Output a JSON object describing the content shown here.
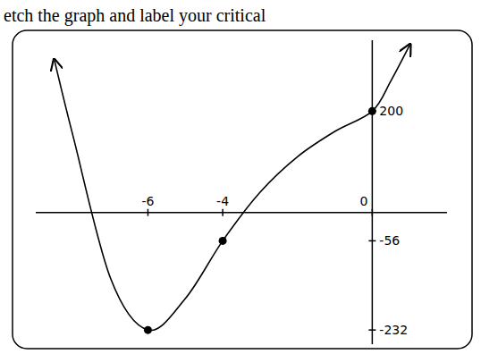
{
  "chart_data": {
    "type": "line",
    "title": "etch the graph and label your critical",
    "xlim": [
      -9,
      2
    ],
    "ylim": [
      -260,
      340
    ],
    "xticks": [
      -6,
      -4,
      0
    ],
    "yticks": [
      200,
      -56,
      -232
    ],
    "grid": false,
    "series": [
      {
        "type": "line",
        "line_style": "solid",
        "x": [
          -8.5,
          -8,
          -7,
          -6,
          -5,
          -4,
          -3,
          -2,
          -1,
          0,
          0.5,
          1
        ],
        "values": [
          300,
          150,
          -130,
          -232,
          -170,
          -56,
          40,
          110,
          160,
          200,
          260,
          330
        ]
      },
      {
        "type": "scatter",
        "marker": "circle",
        "x": [
          -6,
          -4,
          0
        ],
        "values": [
          -232,
          -56,
          200
        ]
      }
    ]
  }
}
